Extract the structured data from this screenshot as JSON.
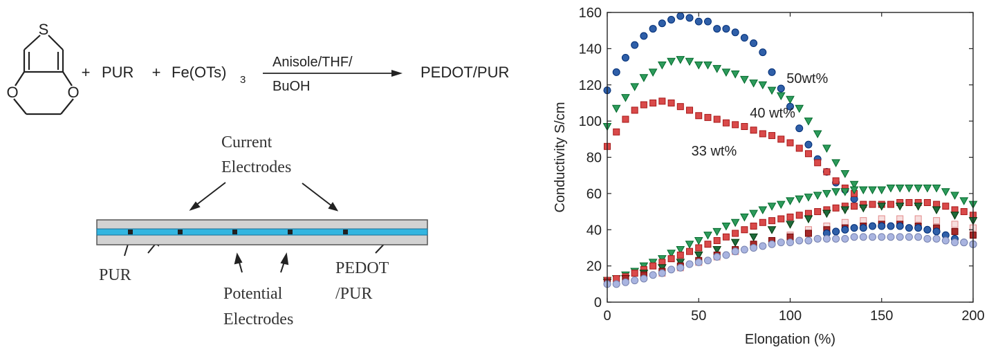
{
  "scheme": {
    "s_atom": "S",
    "o_left": "O",
    "o_right": "O",
    "plus": "+",
    "reagent1": "PUR",
    "reagent2_base": "Fe(OTs)",
    "reagent2_sub": "3",
    "arrow_top": "Anisole/THF/",
    "arrow_bottom": "BuOH",
    "product": "PEDOT/PUR"
  },
  "device": {
    "current_electrodes_l1": "Current",
    "current_electrodes_l2": "Electrodes",
    "pur": "PUR",
    "potential_l1": "Potential",
    "potential_l2": "Electrodes",
    "pedot_l1": "PEDOT",
    "pedot_l2": "/PUR",
    "colors": {
      "substrate": "#d2d2d2",
      "film": "#33b5e0",
      "electrode": "#222222"
    }
  },
  "chart_data": {
    "type": "scatter",
    "xlabel": "Elongation (%)",
    "ylabel": "Conductivity S/cm",
    "xlim": [
      0,
      200
    ],
    "ylim": [
      0,
      160
    ],
    "xticks": [
      0,
      50,
      100,
      150,
      200
    ],
    "yticks": [
      0,
      20,
      40,
      60,
      80,
      100,
      120,
      140,
      160
    ],
    "grid": false,
    "annotations": [
      "50wt%",
      "40 wt%",
      "33 wt%"
    ],
    "series": [
      {
        "color": "#2f5fa8",
        "marker": "circle",
        "filled": true,
        "points": [
          [
            0,
            117
          ],
          [
            5,
            127
          ],
          [
            10,
            135
          ],
          [
            15,
            142
          ],
          [
            20,
            147
          ],
          [
            25,
            151
          ],
          [
            30,
            154
          ],
          [
            35,
            156
          ],
          [
            40,
            158
          ],
          [
            45,
            157
          ],
          [
            50,
            155
          ],
          [
            55,
            155
          ],
          [
            60,
            151
          ],
          [
            65,
            151
          ],
          [
            70,
            149
          ],
          [
            75,
            146
          ],
          [
            80,
            143
          ],
          [
            85,
            138
          ],
          [
            90,
            127
          ],
          [
            95,
            118
          ],
          [
            100,
            108
          ],
          [
            105,
            96
          ],
          [
            110,
            87
          ],
          [
            115,
            79
          ],
          [
            120,
            72
          ],
          [
            125,
            66
          ],
          [
            130,
            62
          ],
          [
            135,
            57
          ]
        ]
      },
      {
        "color": "#2e9b5c",
        "marker": "triangle-down",
        "filled": true,
        "points": [
          [
            0,
            97
          ],
          [
            5,
            107
          ],
          [
            10,
            113
          ],
          [
            15,
            119
          ],
          [
            20,
            124
          ],
          [
            25,
            127
          ],
          [
            30,
            131
          ],
          [
            35,
            133
          ],
          [
            40,
            134
          ],
          [
            45,
            133
          ],
          [
            50,
            131
          ],
          [
            55,
            131
          ],
          [
            60,
            129
          ],
          [
            65,
            127
          ],
          [
            70,
            126
          ],
          [
            75,
            123
          ],
          [
            80,
            121
          ],
          [
            85,
            120
          ],
          [
            90,
            117
          ],
          [
            95,
            114
          ],
          [
            100,
            112
          ],
          [
            105,
            107
          ],
          [
            110,
            100
          ],
          [
            115,
            93
          ],
          [
            120,
            85
          ],
          [
            125,
            77
          ],
          [
            130,
            71
          ],
          [
            135,
            65
          ]
        ]
      },
      {
        "color": "#d94a4a",
        "marker": "square",
        "filled": true,
        "points": [
          [
            0,
            86
          ],
          [
            5,
            94
          ],
          [
            10,
            101
          ],
          [
            15,
            106
          ],
          [
            20,
            109
          ],
          [
            25,
            110
          ],
          [
            30,
            111
          ],
          [
            35,
            110
          ],
          [
            40,
            108
          ],
          [
            45,
            106
          ],
          [
            50,
            103
          ],
          [
            55,
            102
          ],
          [
            60,
            101
          ],
          [
            65,
            99
          ],
          [
            70,
            98
          ],
          [
            75,
            97
          ],
          [
            80,
            95
          ],
          [
            85,
            93
          ],
          [
            90,
            92
          ],
          [
            95,
            90
          ],
          [
            100,
            88
          ],
          [
            105,
            85
          ],
          [
            110,
            82
          ],
          [
            115,
            77
          ],
          [
            120,
            72
          ],
          [
            125,
            67
          ],
          [
            130,
            63
          ],
          [
            135,
            60
          ]
        ]
      },
      {
        "color": "#2e9b5c",
        "marker": "triangle-down",
        "filled": true,
        "points": [
          [
            0,
            12
          ],
          [
            5,
            13
          ],
          [
            10,
            15
          ],
          [
            15,
            17
          ],
          [
            20,
            20
          ],
          [
            25,
            22
          ],
          [
            30,
            24
          ],
          [
            35,
            27
          ],
          [
            40,
            29
          ],
          [
            45,
            32
          ],
          [
            50,
            34
          ],
          [
            55,
            37
          ],
          [
            60,
            39
          ],
          [
            65,
            42
          ],
          [
            70,
            44
          ],
          [
            75,
            47
          ],
          [
            80,
            49
          ],
          [
            85,
            51
          ],
          [
            90,
            53
          ],
          [
            95,
            54
          ],
          [
            100,
            56
          ],
          [
            105,
            57
          ],
          [
            110,
            58
          ],
          [
            115,
            59
          ],
          [
            120,
            60
          ],
          [
            125,
            61
          ],
          [
            130,
            61
          ],
          [
            135,
            62
          ],
          [
            140,
            62
          ],
          [
            145,
            62
          ],
          [
            150,
            62
          ],
          [
            155,
            63
          ],
          [
            160,
            63
          ],
          [
            165,
            63
          ],
          [
            170,
            63
          ],
          [
            175,
            63
          ],
          [
            180,
            63
          ],
          [
            185,
            61
          ],
          [
            190,
            59
          ],
          [
            195,
            56
          ],
          [
            200,
            54
          ]
        ]
      },
      {
        "color": "#d94a4a",
        "marker": "square",
        "filled": true,
        "points": [
          [
            0,
            12
          ],
          [
            5,
            13
          ],
          [
            10,
            14
          ],
          [
            15,
            16
          ],
          [
            20,
            18
          ],
          [
            25,
            20
          ],
          [
            30,
            22
          ],
          [
            35,
            24
          ],
          [
            40,
            26
          ],
          [
            45,
            28
          ],
          [
            50,
            30
          ],
          [
            55,
            32
          ],
          [
            60,
            34
          ],
          [
            65,
            36
          ],
          [
            70,
            38
          ],
          [
            75,
            40
          ],
          [
            80,
            42
          ],
          [
            85,
            44
          ],
          [
            90,
            45
          ],
          [
            95,
            46
          ],
          [
            100,
            47
          ],
          [
            105,
            48
          ],
          [
            110,
            49
          ],
          [
            115,
            50
          ],
          [
            120,
            51
          ],
          [
            125,
            52
          ],
          [
            130,
            53
          ],
          [
            135,
            53
          ],
          [
            140,
            54
          ],
          [
            145,
            54
          ],
          [
            150,
            54
          ],
          [
            155,
            54
          ],
          [
            160,
            55
          ],
          [
            165,
            55
          ],
          [
            170,
            55
          ],
          [
            175,
            55
          ],
          [
            180,
            54
          ],
          [
            185,
            53
          ],
          [
            190,
            51
          ],
          [
            195,
            50
          ],
          [
            200,
            48
          ]
        ]
      },
      {
        "color": "#1f6b3c",
        "marker": "triangle-down",
        "filled": true,
        "points": [
          [
            0,
            11
          ],
          [
            10,
            13
          ],
          [
            20,
            16
          ],
          [
            30,
            19
          ],
          [
            40,
            22
          ],
          [
            50,
            26
          ],
          [
            60,
            29
          ],
          [
            70,
            33
          ],
          [
            80,
            36
          ],
          [
            90,
            40
          ],
          [
            100,
            43
          ],
          [
            110,
            46
          ],
          [
            120,
            49
          ],
          [
            130,
            51
          ],
          [
            140,
            52
          ],
          [
            150,
            53
          ],
          [
            160,
            53
          ],
          [
            170,
            53
          ],
          [
            180,
            51
          ],
          [
            190,
            48
          ],
          [
            200,
            45
          ]
        ]
      },
      {
        "color": "#e38a8a",
        "marker": "square",
        "filled": false,
        "points": [
          [
            0,
            11
          ],
          [
            10,
            12
          ],
          [
            20,
            14
          ],
          [
            30,
            16
          ],
          [
            40,
            19
          ],
          [
            50,
            22
          ],
          [
            60,
            25
          ],
          [
            70,
            28
          ],
          [
            80,
            31
          ],
          [
            90,
            34
          ],
          [
            100,
            37
          ],
          [
            110,
            40
          ],
          [
            120,
            42
          ],
          [
            130,
            44
          ],
          [
            140,
            45
          ],
          [
            150,
            46
          ],
          [
            160,
            46
          ],
          [
            170,
            46
          ],
          [
            180,
            45
          ],
          [
            190,
            43
          ],
          [
            200,
            41
          ]
        ]
      },
      {
        "color": "#a52a2a",
        "marker": "square",
        "filled": true,
        "points": [
          [
            0,
            11
          ],
          [
            10,
            13
          ],
          [
            20,
            15
          ],
          [
            30,
            17
          ],
          [
            40,
            20
          ],
          [
            50,
            23
          ],
          [
            60,
            26
          ],
          [
            70,
            29
          ],
          [
            80,
            32
          ],
          [
            90,
            34
          ],
          [
            100,
            36
          ],
          [
            110,
            38
          ],
          [
            120,
            40
          ],
          [
            130,
            41
          ],
          [
            140,
            42
          ],
          [
            150,
            43
          ],
          [
            160,
            43
          ],
          [
            170,
            42
          ],
          [
            180,
            41
          ],
          [
            190,
            39
          ],
          [
            200,
            37
          ]
        ]
      },
      {
        "color": "#2f5fa8",
        "marker": "circle",
        "filled": true,
        "points": [
          [
            120,
            38
          ],
          [
            125,
            39
          ],
          [
            130,
            40
          ],
          [
            135,
            41
          ],
          [
            140,
            41
          ],
          [
            145,
            42
          ],
          [
            150,
            42
          ],
          [
            155,
            42
          ],
          [
            160,
            42
          ],
          [
            165,
            41
          ],
          [
            170,
            41
          ],
          [
            175,
            40
          ],
          [
            180,
            39
          ],
          [
            185,
            37
          ],
          [
            190,
            35
          ],
          [
            195,
            33
          ],
          [
            200,
            32
          ]
        ]
      },
      {
        "color": "#a9b4e0",
        "marker": "circle",
        "filled": true,
        "points": [
          [
            0,
            10
          ],
          [
            5,
            10
          ],
          [
            10,
            11
          ],
          [
            15,
            12
          ],
          [
            20,
            13
          ],
          [
            25,
            15
          ],
          [
            30,
            16
          ],
          [
            35,
            18
          ],
          [
            40,
            19
          ],
          [
            45,
            21
          ],
          [
            50,
            22
          ],
          [
            55,
            23
          ],
          [
            60,
            25
          ],
          [
            65,
            26
          ],
          [
            70,
            28
          ],
          [
            75,
            29
          ],
          [
            80,
            30
          ],
          [
            85,
            31
          ],
          [
            90,
            32
          ],
          [
            95,
            33
          ],
          [
            100,
            33
          ],
          [
            105,
            34
          ],
          [
            110,
            34
          ],
          [
            115,
            35
          ],
          [
            120,
            35
          ],
          [
            125,
            35
          ],
          [
            130,
            35
          ],
          [
            135,
            36
          ],
          [
            140,
            36
          ],
          [
            145,
            36
          ],
          [
            150,
            36
          ],
          [
            155,
            36
          ],
          [
            160,
            36
          ],
          [
            165,
            36
          ],
          [
            170,
            36
          ],
          [
            175,
            35
          ],
          [
            180,
            35
          ],
          [
            185,
            34
          ],
          [
            190,
            33
          ],
          [
            195,
            33
          ],
          [
            200,
            32
          ]
        ]
      }
    ]
  }
}
